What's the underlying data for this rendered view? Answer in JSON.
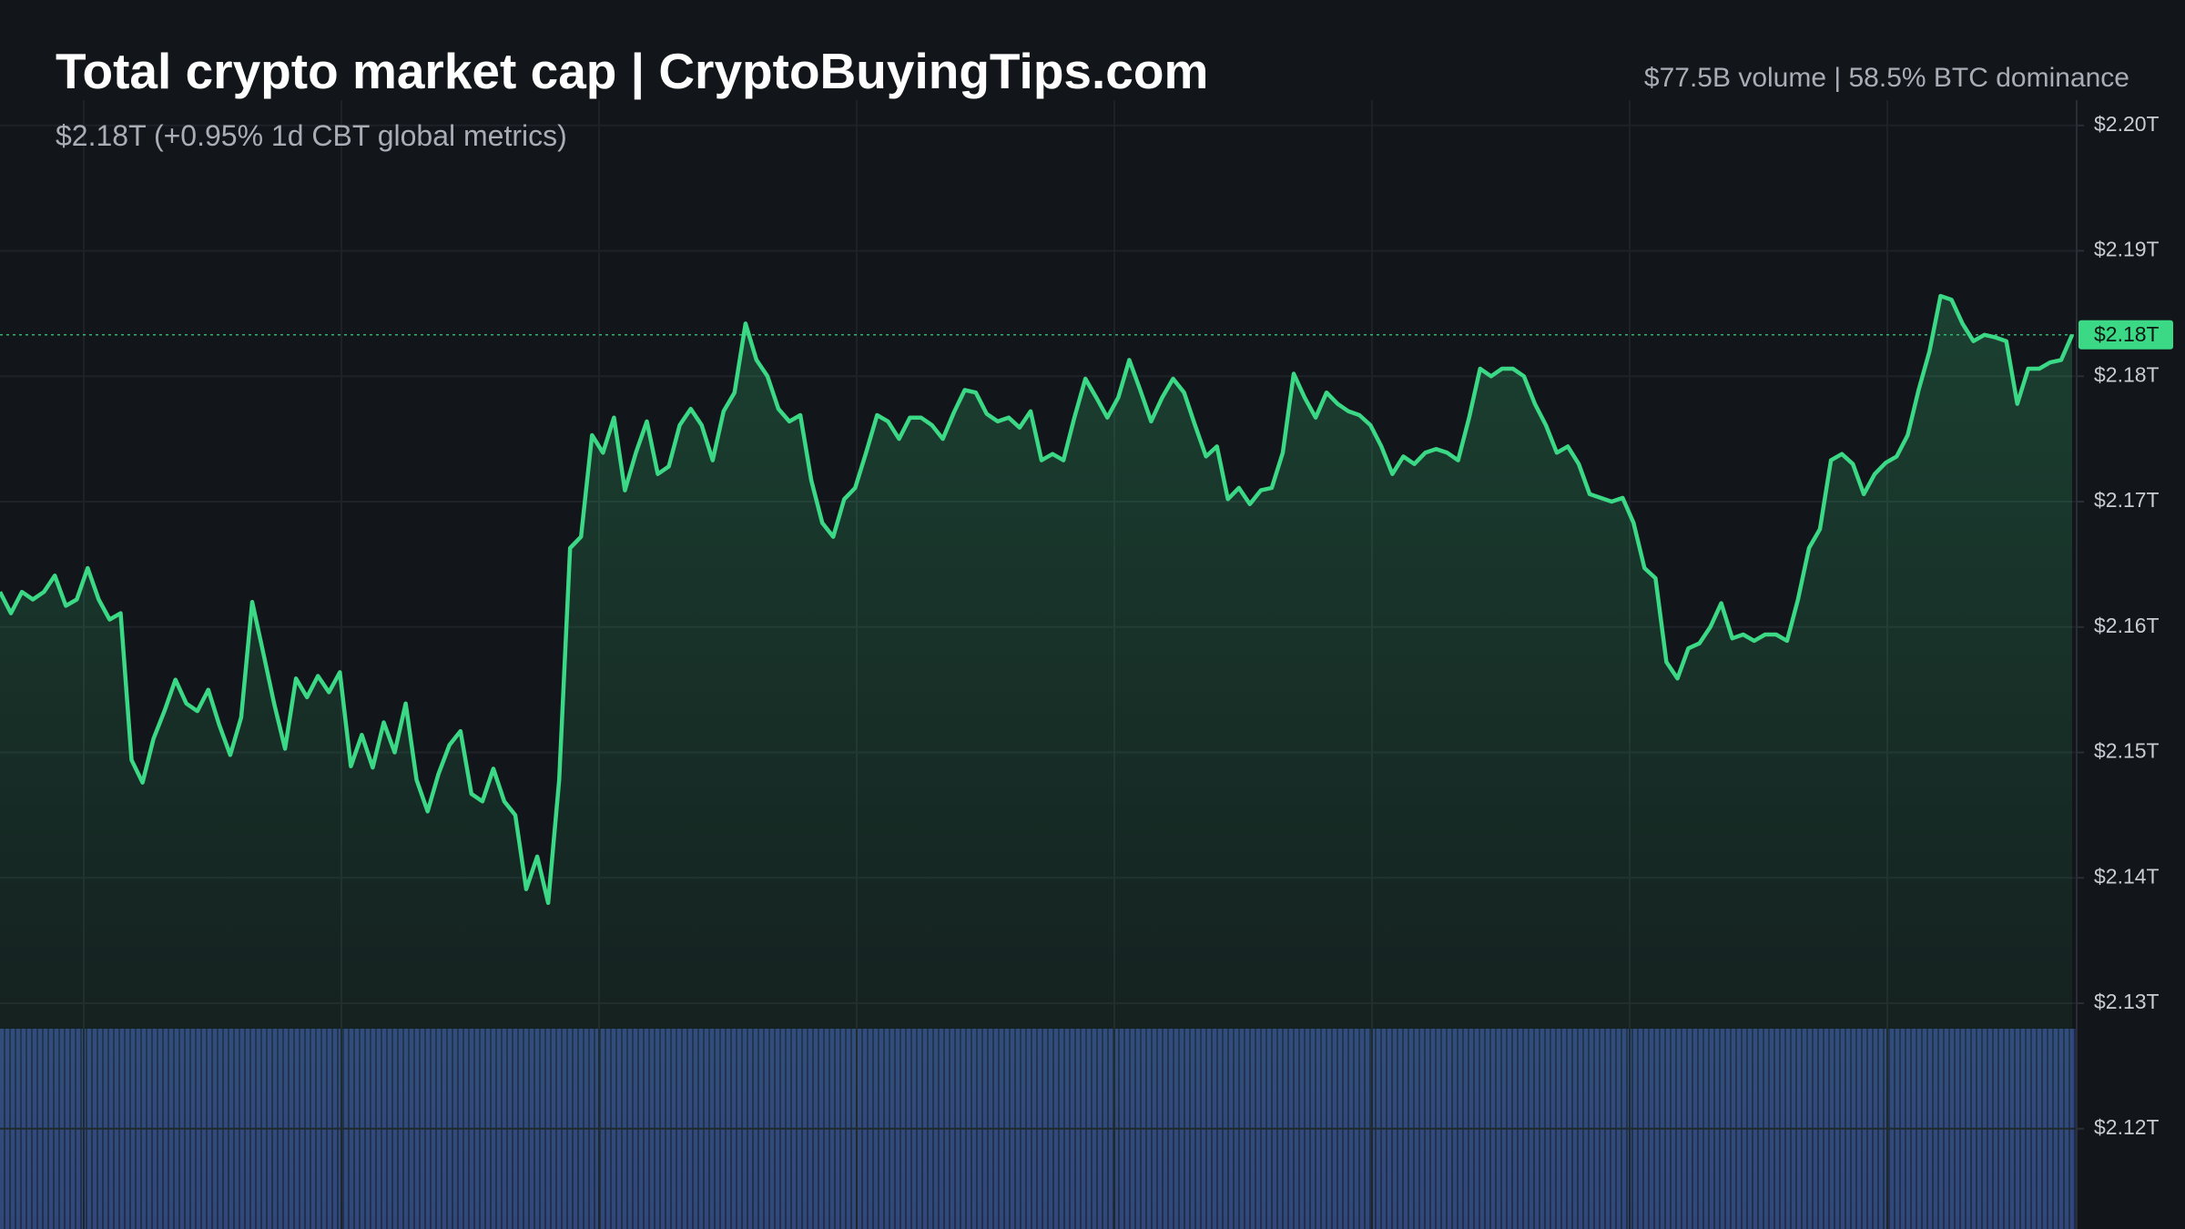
{
  "chart_data": {
    "type": "line",
    "title": "Total crypto market cap | CryptoBuyingTips.com",
    "subtitle": "$2.18T (+0.95% 1d CBT global metrics)",
    "annotation": "$77.5B volume | 58.5% BTC dominance",
    "current_price_label": "$2.18T",
    "color": "#3bd886",
    "grid": true,
    "ylim": [
      2.112,
      2.21
    ],
    "yticks": [
      {
        "value": 2.2,
        "label": "$2.20T"
      },
      {
        "value": 2.19,
        "label": "$2.19T"
      },
      {
        "value": 2.18,
        "label": "$2.18T"
      },
      {
        "value": 2.17,
        "label": "$2.17T"
      },
      {
        "value": 2.16,
        "label": "$2.16T"
      },
      {
        "value": 2.15,
        "label": "$2.15T"
      },
      {
        "value": 2.14,
        "label": "$2.14T"
      },
      {
        "value": 2.13,
        "label": "$2.13T"
      },
      {
        "value": 2.12,
        "label": "$2.12T"
      }
    ],
    "values": [
      2.1628,
      2.1611,
      2.1628,
      2.1622,
      2.1628,
      2.1641,
      2.1617,
      2.1622,
      2.1647,
      2.1622,
      2.1606,
      2.1611,
      2.1494,
      2.1476,
      2.1511,
      2.1533,
      2.1558,
      2.1539,
      2.1533,
      2.155,
      2.1522,
      2.1498,
      2.1528,
      2.162,
      2.158,
      2.1539,
      2.1503,
      2.1559,
      2.1544,
      2.1561,
      2.1548,
      2.1564,
      2.1489,
      2.1514,
      2.1488,
      2.1524,
      2.15,
      2.1539,
      2.1478,
      2.1453,
      2.1483,
      2.1506,
      2.1517,
      2.1467,
      2.1461,
      2.1487,
      2.1461,
      2.145,
      2.1391,
      2.1417,
      2.138,
      2.1478,
      2.1663,
      2.1672,
      2.1753,
      2.1739,
      2.1767,
      2.1709,
      2.1739,
      2.1764,
      2.1722,
      2.1728,
      2.1761,
      2.1774,
      2.1761,
      2.1733,
      2.1772,
      2.1787,
      2.1842,
      2.1813,
      2.18,
      2.1774,
      2.1764,
      2.1769,
      2.1717,
      2.1683,
      2.1672,
      2.1702,
      2.1711,
      2.1739,
      2.1769,
      2.1764,
      2.175,
      2.1767,
      2.1767,
      2.1761,
      2.175,
      2.1771,
      2.1789,
      2.1787,
      2.177,
      2.1764,
      2.1767,
      2.1759,
      2.1772,
      2.1733,
      2.1738,
      2.1733,
      2.1767,
      2.1798,
      2.1783,
      2.1767,
      2.1783,
      2.1813,
      2.1789,
      2.1764,
      2.1783,
      2.1798,
      2.1787,
      2.1761,
      2.1736,
      2.1744,
      2.1702,
      2.1711,
      2.1698,
      2.1709,
      2.1711,
      2.1739,
      2.1802,
      2.1783,
      2.1767,
      2.1787,
      2.1778,
      2.1772,
      2.1769,
      2.1761,
      2.1744,
      2.1722,
      2.1736,
      2.173,
      2.1739,
      2.1742,
      2.1739,
      2.1733,
      2.1767,
      2.1806,
      2.18,
      2.1806,
      2.1806,
      2.18,
      2.1778,
      2.1761,
      2.1739,
      2.1744,
      2.173,
      2.1706,
      2.1703,
      2.17,
      2.1703,
      2.1683,
      2.1647,
      2.1639,
      2.1572,
      2.1559,
      2.1583,
      2.1587,
      2.16,
      2.1619,
      2.1591,
      2.1594,
      2.1589,
      2.1594,
      2.1594,
      2.1589,
      2.1622,
      2.1663,
      2.1678,
      2.1733,
      2.1738,
      2.173,
      2.1706,
      2.1722,
      2.1731,
      2.1736,
      2.1753,
      2.1789,
      2.182,
      2.1864,
      2.1861,
      2.1842,
      2.1828,
      2.1833,
      2.1831,
      2.1828,
      2.1778,
      2.1806,
      2.1806,
      2.1811,
      2.1813,
      2.1833
    ]
  }
}
